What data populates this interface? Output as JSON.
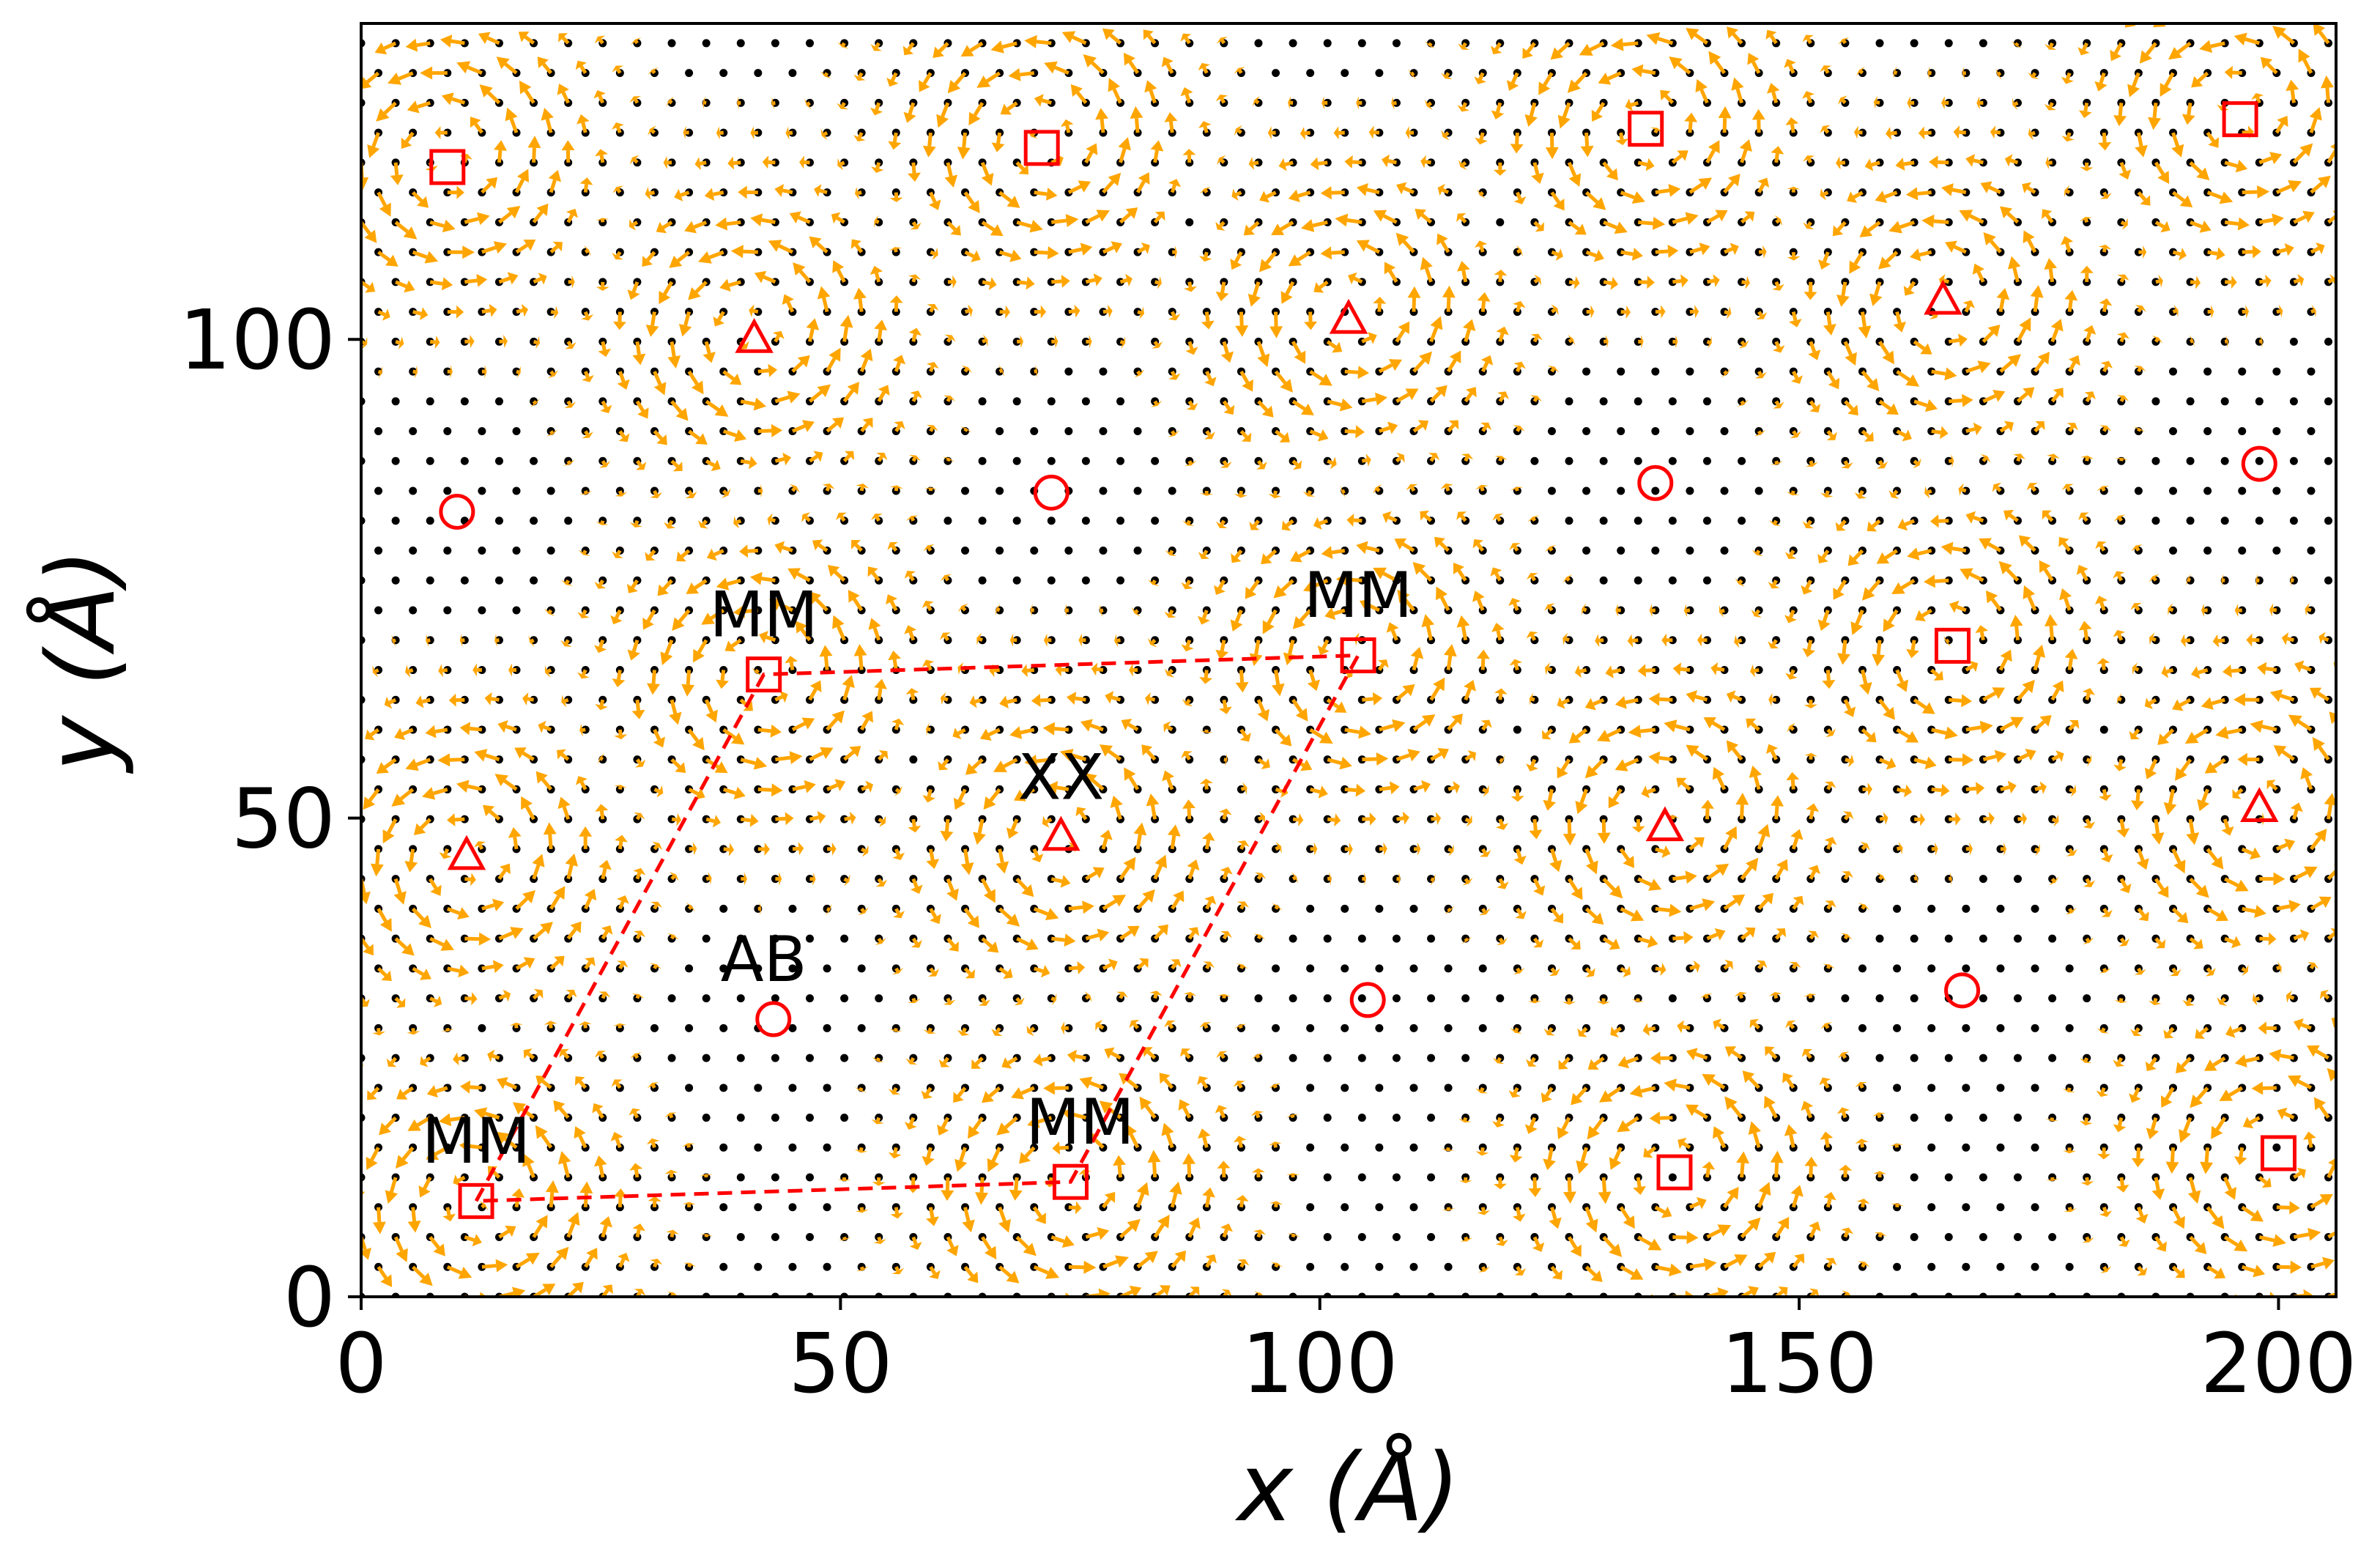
{
  "chart_data": {
    "type": "scatter",
    "title": "",
    "xlabel": "x (Å)",
    "ylabel": "y (Å)",
    "xlim": [
      0,
      206
    ],
    "ylim": [
      0,
      133
    ],
    "xticks": [
      0,
      50,
      100,
      150,
      200
    ],
    "yticks": [
      0,
      50,
      100
    ],
    "xtick_labels": [
      "0",
      "50",
      "100",
      "150",
      "200"
    ],
    "ytick_labels": [
      "0",
      "50",
      "100"
    ],
    "grid": false,
    "colors": {
      "vectors": "#ffa500",
      "sites": "#000000",
      "markers": "#ff0000",
      "cell": "#ff0000"
    },
    "vector_field": {
      "spacing": 3.6,
      "vortex_centers": [
        [
          11,
          46
        ],
        [
          41,
          101
        ],
        [
          73,
          48
        ],
        [
          103,
          103
        ],
        [
          136,
          50
        ],
        [
          165,
          104
        ],
        [
          198,
          51
        ],
        [
          9,
          119
        ],
        [
          71,
          121
        ],
        [
          134,
          122
        ],
        [
          196,
          124
        ],
        [
          12,
          10
        ],
        [
          74,
          12
        ],
        [
          137,
          13
        ],
        [
          200,
          15
        ],
        [
          42,
          65
        ],
        [
          104,
          67
        ],
        [
          166,
          68
        ]
      ]
    },
    "series": [
      {
        "marker": "square",
        "points": [
          [
            9,
            118
          ],
          [
            71,
            120
          ],
          [
            134,
            122
          ],
          [
            196,
            123
          ],
          [
            42,
            65
          ],
          [
            104,
            67
          ],
          [
            166,
            68
          ],
          [
            12,
            10
          ],
          [
            74,
            12
          ],
          [
            137,
            13
          ],
          [
            200,
            15
          ]
        ]
      },
      {
        "marker": "triangle",
        "points": [
          [
            41,
            100
          ],
          [
            103,
            102
          ],
          [
            165,
            104
          ],
          [
            11,
            46
          ],
          [
            73,
            48
          ],
          [
            136,
            49
          ],
          [
            198,
            51
          ]
        ]
      },
      {
        "marker": "circle",
        "points": [
          [
            10,
            82
          ],
          [
            72,
            84
          ],
          [
            135,
            85
          ],
          [
            198,
            87
          ],
          [
            43,
            29
          ],
          [
            105,
            31
          ],
          [
            167,
            32
          ]
        ]
      }
    ],
    "unit_cell": [
      [
        12,
        10
      ],
      [
        42,
        65
      ],
      [
        104,
        67
      ],
      [
        74,
        12
      ]
    ],
    "annotations": [
      {
        "text": "MM",
        "x": 42,
        "y": 69
      },
      {
        "text": "MM",
        "x": 104,
        "y": 71
      },
      {
        "text": "XX",
        "x": 73,
        "y": 52
      },
      {
        "text": "AB",
        "x": 42,
        "y": 33
      },
      {
        "text": "MM",
        "x": 12,
        "y": 14
      },
      {
        "text": "MM",
        "x": 75,
        "y": 16
      }
    ]
  }
}
